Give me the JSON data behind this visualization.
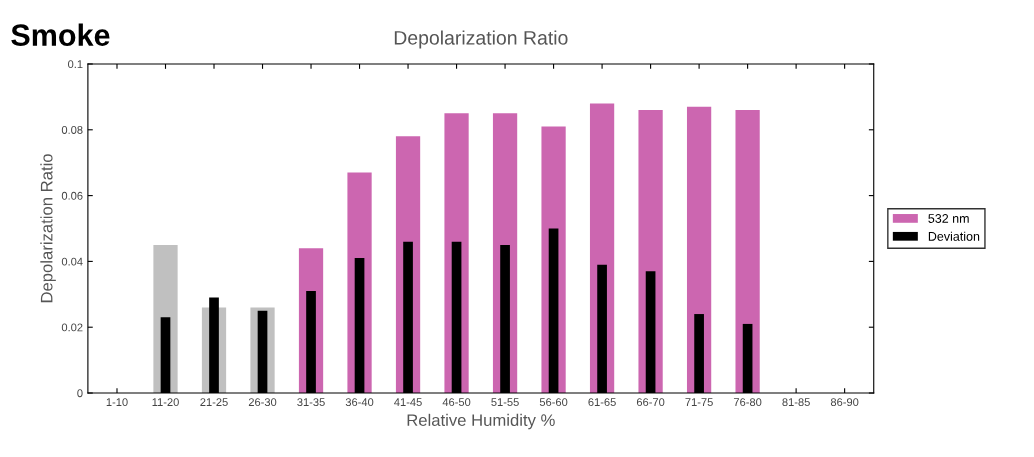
{
  "chart_data": {
    "type": "bar",
    "title": "Depolarization Ratio",
    "xlabel": "Relative Humidity %",
    "ylabel": "Depolarization Ratio",
    "annotations": [
      "Smoke"
    ],
    "categories": [
      "1-10",
      "11-20",
      "21-25",
      "26-30",
      "31-35",
      "36-40",
      "41-45",
      "46-50",
      "51-55",
      "56-60",
      "61-65",
      "66-70",
      "71-75",
      "76-80",
      "81-85",
      "86-90"
    ],
    "series": [
      {
        "name": "532 nm",
        "color": "#cc66b0",
        "colors": [
          "#cc66b0",
          "#c0c0c0",
          "#c0c0c0",
          "#c0c0c0",
          "#cc66b0",
          "#cc66b0",
          "#cc66b0",
          "#cc66b0",
          "#cc66b0",
          "#cc66b0",
          "#cc66b0",
          "#cc66b0",
          "#cc66b0",
          "#cc66b0",
          "#cc66b0",
          "#cc66b0"
        ],
        "values": [
          null,
          0.045,
          0.026,
          0.026,
          0.044,
          0.067,
          0.078,
          0.085,
          0.085,
          0.081,
          0.088,
          0.086,
          0.087,
          0.086,
          null,
          null
        ]
      },
      {
        "name": "Deviation",
        "color": "#000000",
        "values": [
          null,
          0.023,
          0.029,
          0.025,
          0.031,
          0.041,
          0.046,
          0.046,
          0.045,
          0.05,
          0.039,
          0.037,
          0.024,
          0.021,
          null,
          null
        ]
      }
    ],
    "ylim": [
      0,
      0.1
    ],
    "yticks": [
      0,
      0.02,
      0.04,
      0.06,
      0.08,
      0.1
    ],
    "grid": false,
    "legend": "right"
  }
}
